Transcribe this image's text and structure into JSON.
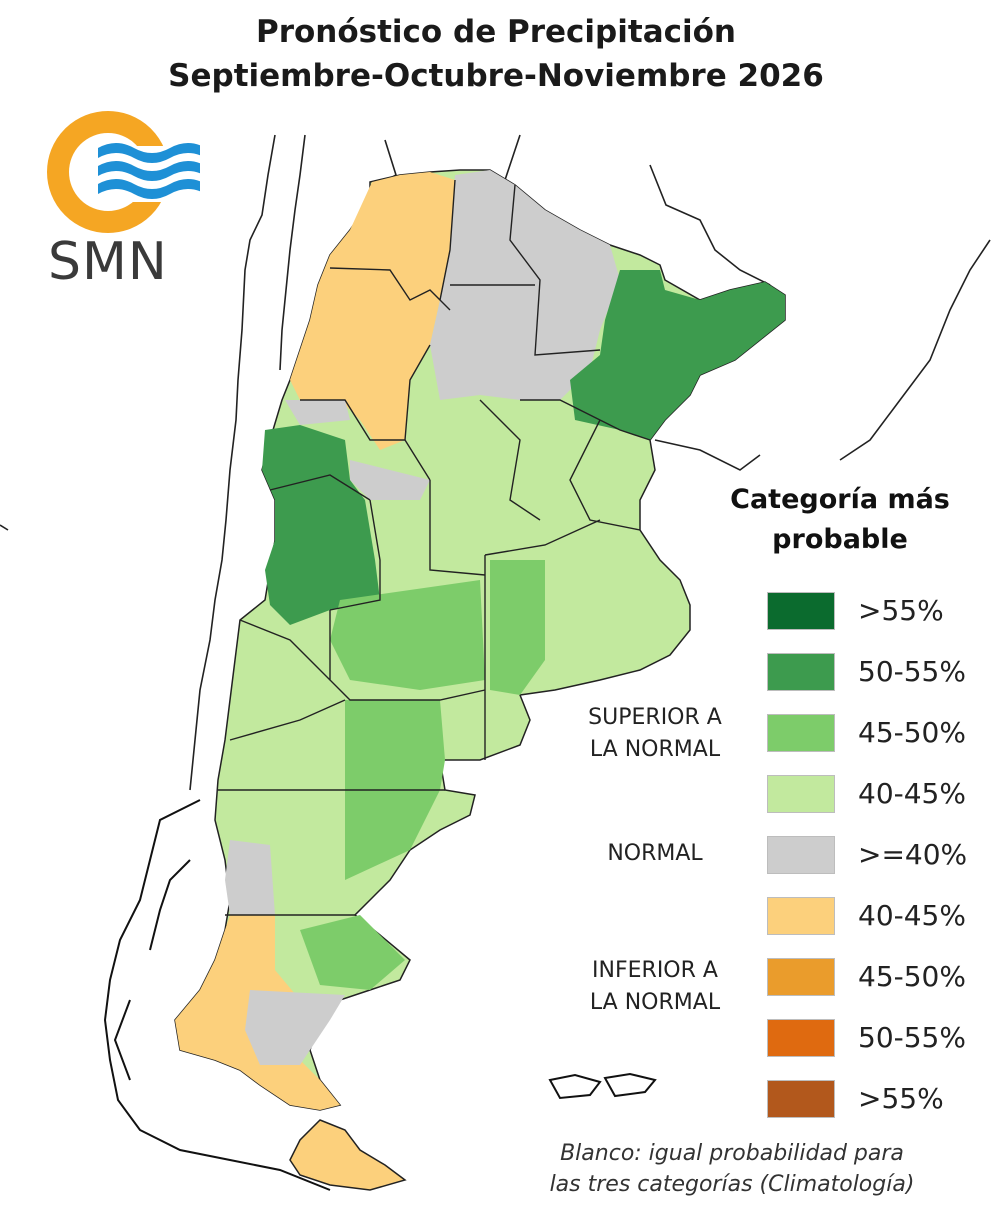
{
  "title": {
    "line1": "Pronóstico de Precipitación",
    "line2": "Septiembre-Octubre-Noviembre 2026"
  },
  "logo": {
    "text": "SMN",
    "ring_color": "#f5a623",
    "wave_color": "#1e90d6"
  },
  "legend": {
    "title_line1": "Categoría más",
    "title_line2": "probable",
    "groups": {
      "superior_line1": "SUPERIOR A",
      "superior_line2": "LA NORMAL",
      "normal": "NORMAL",
      "inferior_line1": "INFERIOR A",
      "inferior_line2": "LA NORMAL"
    },
    "items": [
      {
        "label": ">55%",
        "color": "#0b6b2e"
      },
      {
        "label": "50-55%",
        "color": "#3d9b4e"
      },
      {
        "label": "45-50%",
        "color": "#7dcc6a"
      },
      {
        "label": "40-45%",
        "color": "#c2e99e"
      },
      {
        "label": ">=40%",
        "color": "#cdcdcd"
      },
      {
        "label": "40-45%",
        "color": "#fcd07c"
      },
      {
        "label": "45-50%",
        "color": "#ea9c2c"
      },
      {
        "label": "50-55%",
        "color": "#df6a10"
      },
      {
        "label": ">55%",
        "color": "#b2581c"
      }
    ]
  },
  "note": {
    "line1": "Blanco: igual probabilidad para",
    "line2": "las tres categorías (Climatología)"
  }
}
